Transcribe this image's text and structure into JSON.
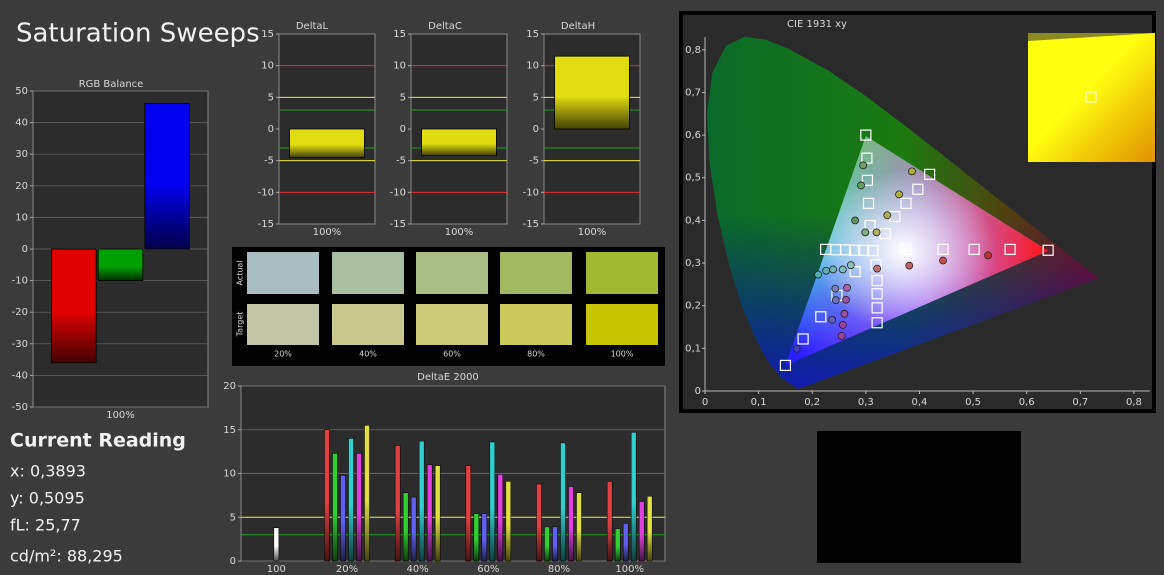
{
  "page": {
    "title": "Saturation Sweeps"
  },
  "current_reading": {
    "title": "Current Reading",
    "lines": [
      "x: 0,3893",
      "y: 0,5095",
      "fL: 25,77",
      "cd/m²: 88,295"
    ]
  },
  "swatches": {
    "row_labels": [
      "Actual",
      "Target"
    ],
    "columns": [
      "20%",
      "40%",
      "60%",
      "80%",
      "100%"
    ],
    "actual": [
      "#a9bcc0",
      "#a9bfa0",
      "#a8bc83",
      "#a4b864",
      "#a0b830"
    ],
    "target": [
      "#c2c4a6",
      "#c7c78e",
      "#c9c977",
      "#c9c858",
      "#c8c400"
    ]
  },
  "chart_data": [
    {
      "type": "bar",
      "title": "RGB Balance",
      "categories": [
        "100%"
      ],
      "series": [
        {
          "color": "#e00000",
          "values": [
            -36
          ]
        },
        {
          "color": "#00a000",
          "values": [
            -10
          ]
        },
        {
          "color": "#0000f0",
          "values": [
            46
          ]
        }
      ],
      "ylim": [
        -50,
        50
      ],
      "yticks": [
        -50,
        -40,
        -30,
        -20,
        -10,
        0,
        10,
        20,
        30,
        40,
        50
      ],
      "grid": true
    },
    {
      "type": "bar",
      "title": "DeltaL",
      "categories": [
        "100%"
      ],
      "values": [
        -4.5
      ],
      "color": "#e0dc10",
      "ylim": [
        -15,
        15
      ],
      "yticks": [
        -15,
        -10,
        -5,
        0,
        5,
        10,
        15
      ],
      "grid": false,
      "reference_lines": [
        {
          "value": 10,
          "color": "#e03030"
        },
        {
          "value": -10,
          "color": "#e03030"
        },
        {
          "value": 5,
          "color": "#e8e840"
        },
        {
          "value": -5,
          "color": "#e8e840"
        },
        {
          "value": 3,
          "color": "#20a020"
        },
        {
          "value": -3,
          "color": "#20a020"
        }
      ]
    },
    {
      "type": "bar",
      "title": "DeltaC",
      "categories": [
        "100%"
      ],
      "values": [
        -4.2
      ],
      "color": "#e0dc10",
      "ylim": [
        -15,
        15
      ],
      "yticks": [
        -15,
        -10,
        -5,
        0,
        5,
        10,
        15
      ],
      "grid": false,
      "reference_lines": [
        {
          "value": 10,
          "color": "#e03030"
        },
        {
          "value": -10,
          "color": "#e03030"
        },
        {
          "value": 5,
          "color": "#e8e840"
        },
        {
          "value": -5,
          "color": "#e8e840"
        },
        {
          "value": 3,
          "color": "#20a020"
        },
        {
          "value": -3,
          "color": "#20a020"
        }
      ]
    },
    {
      "type": "bar",
      "title": "DeltaH",
      "categories": [
        "100%"
      ],
      "values": [
        11.5
      ],
      "color": "#e0dc10",
      "ylim": [
        -15,
        15
      ],
      "yticks": [
        -15,
        -10,
        -5,
        0,
        5,
        10,
        15
      ],
      "grid": false,
      "reference_lines": [
        {
          "value": 10,
          "color": "#e03030"
        },
        {
          "value": -10,
          "color": "#e03030"
        },
        {
          "value": 5,
          "color": "#e8e840"
        },
        {
          "value": -5,
          "color": "#e8e840"
        },
        {
          "value": 3,
          "color": "#20a020"
        },
        {
          "value": -3,
          "color": "#20a020"
        }
      ]
    },
    {
      "type": "grouped_bar",
      "title": "DeltaE 2000",
      "categories": [
        "100",
        "20%",
        "40%",
        "60%",
        "80%",
        "100%"
      ],
      "series": [
        {
          "color": "#ffffff",
          "values": [
            3.8,
            null,
            null,
            null,
            null,
            null
          ]
        },
        {
          "color": "#e04040",
          "values": [
            null,
            15.0,
            13.2,
            10.9,
            8.8,
            9.1
          ]
        },
        {
          "color": "#30d030",
          "values": [
            null,
            12.3,
            7.8,
            5.4,
            3.9,
            3.7
          ]
        },
        {
          "color": "#6060f0",
          "values": [
            null,
            9.8,
            7.3,
            5.4,
            3.9,
            4.3
          ]
        },
        {
          "color": "#30d0d0",
          "values": [
            null,
            14.0,
            13.7,
            13.6,
            13.5,
            14.7
          ]
        },
        {
          "color": "#e040e0",
          "values": [
            null,
            12.3,
            11.0,
            9.9,
            8.5,
            6.8
          ]
        },
        {
          "color": "#e0e040",
          "values": [
            null,
            15.5,
            10.9,
            9.1,
            7.8,
            7.4
          ]
        }
      ],
      "ylim": [
        0,
        20
      ],
      "yticks": [
        0,
        5,
        10,
        15,
        20
      ],
      "grid": true,
      "reference_lines": [
        {
          "value": 10,
          "color": "#e03030"
        },
        {
          "value": 5,
          "color": "#e8e840"
        },
        {
          "value": 3,
          "color": "#20a020"
        }
      ]
    },
    {
      "type": "scatter",
      "title": "CIE 1931 xy",
      "xlim": [
        0,
        0.83
      ],
      "ylim": [
        0,
        0.83
      ],
      "xticks": [
        0,
        {
          "value": 0.1,
          "label": "0,1"
        },
        {
          "value": 0.2,
          "label": "0,2"
        },
        {
          "value": 0.3,
          "label": "0,3"
        },
        {
          "value": 0.4,
          "label": "0,4"
        },
        {
          "value": 0.5,
          "label": "0,5"
        },
        {
          "value": 0.6,
          "label": "0,6"
        },
        {
          "value": 0.7,
          "label": "0,7"
        },
        {
          "value": 0.8,
          "label": "0,8"
        }
      ],
      "yticks": [
        0,
        {
          "value": 0.1,
          "label": "0,1"
        },
        {
          "value": 0.2,
          "label": "0,2"
        },
        {
          "value": 0.3,
          "label": "0,3"
        },
        {
          "value": 0.4,
          "label": "0,4"
        },
        {
          "value": 0.5,
          "label": "0,5"
        },
        {
          "value": 0.6,
          "label": "0,6"
        },
        {
          "value": 0.7,
          "label": "0,7"
        },
        {
          "value": 0.8,
          "label": "0,8"
        }
      ],
      "series": [
        {
          "marker": "square",
          "color": "#ffffff",
          "x": [
            0.313,
            0.375,
            0.444,
            0.502,
            0.569,
            0.64,
            0.3,
            0.302,
            0.303,
            0.305,
            0.308,
            0.15,
            0.183,
            0.216,
            0.246,
            0.28,
            0.225,
            0.244,
            0.262,
            0.279,
            0.296,
            0.319,
            0.321,
            0.321,
            0.321,
            0.321,
            0.336,
            0.354,
            0.375,
            0.397,
            0.419
          ],
          "y": [
            0.329,
            0.332,
            0.332,
            0.332,
            0.332,
            0.33,
            0.6,
            0.546,
            0.494,
            0.44,
            0.388,
            0.06,
            0.122,
            0.174,
            0.224,
            0.28,
            0.332,
            0.331,
            0.331,
            0.33,
            0.33,
            0.296,
            0.259,
            0.228,
            0.195,
            0.16,
            0.369,
            0.409,
            0.44,
            0.473,
            0.508
          ]
        },
        {
          "marker": "circle",
          "colors": [
            "#c07070",
            "#c06060",
            "#c05050",
            "#c03030",
            "#70a070",
            "#60a060",
            "#609060",
            "#80b080",
            "#8080c0",
            "#7070c0",
            "#6060c0",
            "#4040c0",
            "#50b0b0",
            "#60b0b0",
            "#70b8b8",
            "#80c0c0",
            "#90c0c0",
            "#b060b0",
            "#a050a0",
            "#a050a0",
            "#a040a0",
            "#a040a0",
            "#b0b060",
            "#b0b050",
            "#b0b040",
            "#b0b030"
          ],
          "x": [
            0.321,
            0.381,
            0.444,
            0.528,
            0.295,
            0.291,
            0.28,
            0.299,
            0.243,
            0.244,
            0.237,
            0.171,
            0.211,
            0.226,
            0.239,
            0.257,
            0.272,
            0.265,
            0.263,
            0.26,
            0.257,
            0.255,
            0.32,
            0.34,
            0.362,
            0.386
          ],
          "y": [
            0.287,
            0.294,
            0.306,
            0.318,
            0.529,
            0.482,
            0.4,
            0.372,
            0.24,
            0.213,
            0.167,
            0.099,
            0.273,
            0.282,
            0.285,
            0.285,
            0.295,
            0.242,
            0.214,
            0.181,
            0.155,
            0.129,
            0.372,
            0.412,
            0.461,
            0.515
          ]
        }
      ]
    }
  ]
}
